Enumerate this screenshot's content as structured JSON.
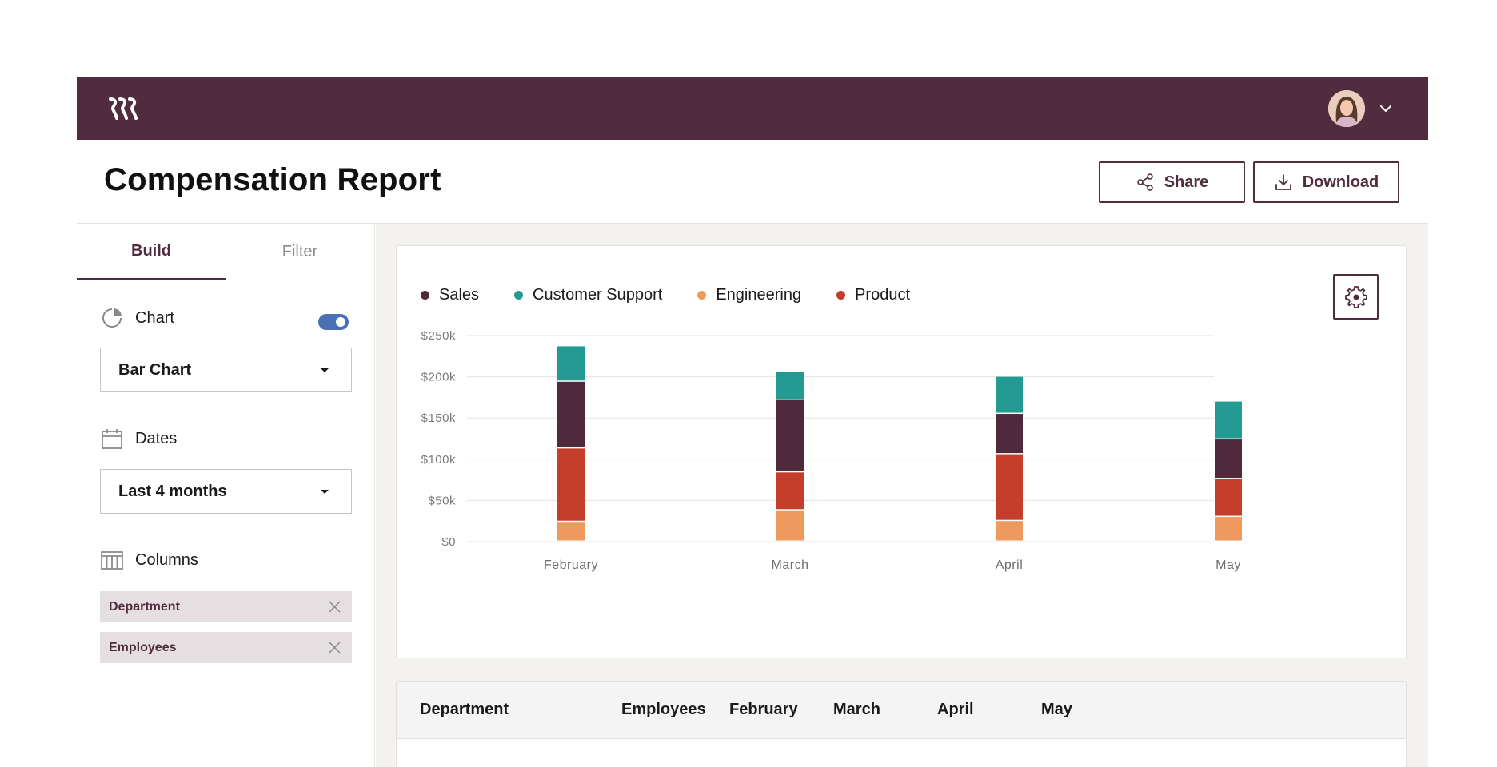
{
  "topbar": {
    "logo_icon": "brand-logo-icon",
    "avatar_icon": "user-avatar-icon",
    "menu_icon": "chevron-down-icon"
  },
  "header": {
    "title": "Compensation Report",
    "share_label": "Share",
    "download_label": "Download"
  },
  "sidebar": {
    "tabs": [
      {
        "label": "Build"
      },
      {
        "label": "Filter"
      }
    ],
    "chart": {
      "label": "Chart",
      "enabled": true,
      "selected": "Bar Chart"
    },
    "dates": {
      "label": "Dates",
      "selected": "Last 4 months"
    },
    "columns": {
      "label": "Columns",
      "chips": [
        {
          "label": "Department"
        },
        {
          "label": "Employees"
        }
      ]
    }
  },
  "colors": {
    "brand": "#512c3e",
    "sales": "#4f2a3c",
    "customer_support": "#249b92",
    "engineering": "#ee9a5e",
    "product": "#c43e2b"
  },
  "chart_data": {
    "type": "bar",
    "stacked": true,
    "categories": [
      "February",
      "March",
      "April",
      "May"
    ],
    "series": [
      {
        "name": "Engineering",
        "color": "#ee9a5e",
        "values": [
          24000,
          38000,
          25000,
          30000
        ]
      },
      {
        "name": "Product",
        "color": "#c43e2b",
        "values": [
          89000,
          46000,
          81000,
          46000
        ]
      },
      {
        "name": "Sales",
        "color": "#4f2a3c",
        "values": [
          81000,
          88000,
          49000,
          48000
        ]
      },
      {
        "name": "Customer Support",
        "color": "#249b92",
        "values": [
          43000,
          34000,
          45000,
          46000
        ]
      }
    ],
    "legend": [
      "Sales",
      "Customer Support",
      "Engineering",
      "Product"
    ],
    "legend_colors": [
      "#4f2a3c",
      "#249b92",
      "#ee9a5e",
      "#c43e2b"
    ],
    "ylim": [
      0,
      250000
    ],
    "yticks": [
      0,
      50000,
      100000,
      150000,
      200000,
      250000
    ],
    "ytick_labels": [
      "$0",
      "$50k",
      "$100k",
      "$150k",
      "$200k",
      "$250k"
    ],
    "grid": true,
    "legend_position": "top-left"
  },
  "table": {
    "headers": [
      "Department",
      "Employees",
      "February",
      "March",
      "April",
      "May"
    ]
  }
}
